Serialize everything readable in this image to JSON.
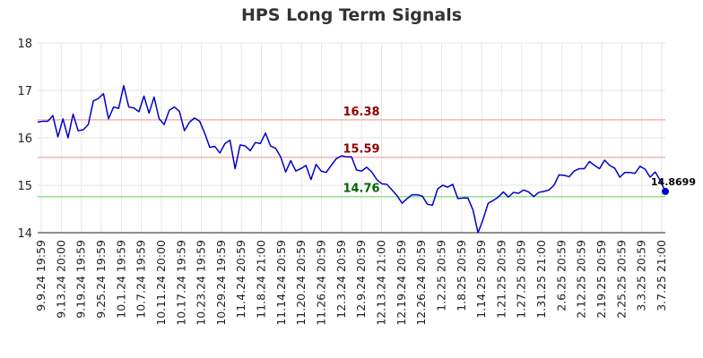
{
  "chart_data": {
    "type": "line",
    "title": "HPS Long Term Signals",
    "xlabel": "",
    "ylabel": "",
    "ylim": [
      14,
      18
    ],
    "yticks": [
      14,
      15,
      16,
      17,
      18
    ],
    "grid": true,
    "x_tick_labels": [
      "9.9.24 19:59",
      "9.13.24 20:00",
      "9.19.24 19:59",
      "9.25.24 19:59",
      "10.1.24 19:59",
      "10.7.24 19:59",
      "10.11.24 20:00",
      "10.17.24 19:59",
      "10.23.24 19:59",
      "10.29.24 19:59",
      "11.4.24 20:59",
      "11.8.24 21:00",
      "11.14.24 20:59",
      "11.20.24 20:59",
      "11.26.24 20:59",
      "12.3.24 20:59",
      "12.9.24 20:59",
      "12.13.24 21:00",
      "12.19.24 20:59",
      "12.26.24 20:59",
      "1.2.25 20:59",
      "1.8.25 20:59",
      "1.14.25 20:59",
      "1.21.25 20:59",
      "1.27.25 20:59",
      "1.31.25 21:00",
      "2.6.25 20:59",
      "2.12.25 20:59",
      "2.19.25 20:59",
      "2.25.25 20:59",
      "3.3.25 20:59",
      "3.7.25 21:00"
    ],
    "series": [
      {
        "values": [
          16.33,
          16.35,
          16.35,
          16.47,
          16.02,
          16.4,
          16.0,
          16.5,
          16.15,
          16.17,
          16.28,
          16.78,
          16.83,
          16.93,
          16.4,
          16.65,
          16.62,
          17.1,
          16.65,
          16.63,
          16.55,
          16.88,
          16.52,
          16.86,
          16.4,
          16.28,
          16.58,
          16.65,
          16.56,
          16.15,
          16.33,
          16.42,
          16.35,
          16.1,
          15.8,
          15.82,
          15.68,
          15.88,
          15.95,
          15.35,
          15.85,
          15.83,
          15.73,
          15.9,
          15.88,
          16.1,
          15.83,
          15.78,
          15.6,
          15.28,
          15.52,
          15.3,
          15.35,
          15.42,
          15.12,
          15.44,
          15.3,
          15.27,
          15.42,
          15.56,
          15.62,
          15.6,
          15.6,
          15.32,
          15.3,
          15.38,
          15.28,
          15.12,
          15.03,
          15.02,
          14.9,
          14.78,
          14.62,
          14.72,
          14.8,
          14.8,
          14.77,
          14.6,
          14.58,
          14.92,
          15.0,
          14.96,
          15.02,
          14.72,
          14.73,
          14.73,
          14.48,
          14.0,
          14.28,
          14.62,
          14.68,
          14.75,
          14.86,
          14.75,
          14.85,
          14.83,
          14.9,
          14.86,
          14.76,
          14.85,
          14.87,
          14.9,
          15.0,
          15.22,
          15.21,
          15.18,
          15.3,
          15.35,
          15.35,
          15.5,
          15.42,
          15.35,
          15.53,
          15.42,
          15.36,
          15.17,
          15.27,
          15.27,
          15.25,
          15.4,
          15.34,
          15.17,
          15.28,
          15.1,
          14.8699
        ]
      }
    ],
    "levels": [
      {
        "label": "16.38",
        "value": 16.38,
        "line_color": "#f5b5b0",
        "text_color": "#8b0000"
      },
      {
        "label": "15.59",
        "value": 15.59,
        "line_color": "#f5b5b0",
        "text_color": "#8b0000"
      },
      {
        "label": "14.76",
        "value": 14.76,
        "line_color": "#90e090",
        "text_color": "#006400"
      }
    ],
    "last_value_label": "14.8699",
    "colors": {
      "line": "#0000cc",
      "grid": "#e6e6e6",
      "axis": "#222222"
    }
  }
}
